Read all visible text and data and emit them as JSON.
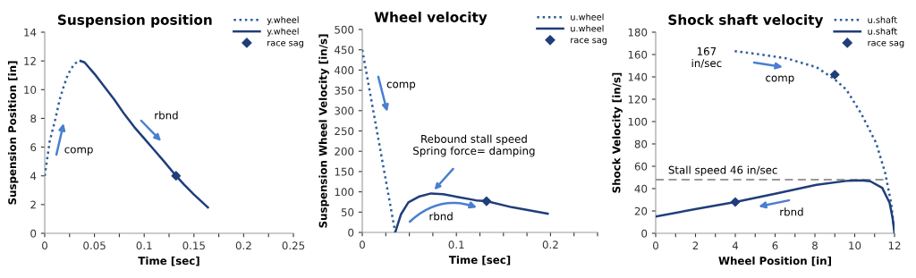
{
  "chart_data": [
    {
      "type": "line",
      "title": "Suspension position",
      "xlabel": "Time [sec]",
      "ylabel": "Suspension Position [in]",
      "xlim": [
        0,
        0.25
      ],
      "ylim": [
        0,
        14
      ],
      "xticks": [
        0,
        {
          "value": 0.025,
          "label": null
        },
        0.05,
        {
          "value": 0.075,
          "label": null
        },
        0.1,
        {
          "value": 0.125,
          "label": null
        },
        0.15,
        {
          "value": 0.175,
          "label": null
        },
        0.2,
        {
          "value": 0.225,
          "label": null
        },
        0.25
      ],
      "yticks": [
        0,
        2,
        4,
        6,
        8,
        10,
        12,
        14
      ],
      "grid": false,
      "legend": "top right",
      "series": [
        {
          "name": "y.wheel",
          "color": "#2e5c9a",
          "line_style": "dotted",
          "x": [
            0,
            0.005,
            0.0105,
            0.015,
            0.019,
            0.023,
            0.027,
            0.031,
            0.036
          ],
          "values": [
            4.0,
            6.4,
            7.9,
            9.3,
            10.2,
            11.0,
            11.5,
            11.85,
            12.0
          ]
        },
        {
          "name": "y.wheel",
          "color": "#1f3e7a",
          "line_style": "solid",
          "x": [
            0.036,
            0.04,
            0.05,
            0.06,
            0.07,
            0.08,
            0.09,
            0.1,
            0.11,
            0.12,
            0.132,
            0.14,
            0.15,
            0.164
          ],
          "values": [
            12.0,
            11.9,
            11.1,
            10.2,
            9.3,
            8.3,
            7.4,
            6.6,
            5.8,
            5.0,
            4.0,
            3.4,
            2.7,
            1.8
          ]
        },
        {
          "name": "race sag",
          "type": "scatter",
          "marker": "diamond",
          "color": "#1f3e7a",
          "x": [
            0.132
          ],
          "values": [
            4.0
          ]
        }
      ],
      "annotations": [
        "comp",
        "rbnd"
      ]
    },
    {
      "type": "line",
      "title": "Wheel velocity",
      "xlabel": "Time [sec]",
      "ylabel": "Suspension Wheel Velocity [in/s]",
      "xlim": [
        0,
        0.25
      ],
      "ylim": [
        0,
        500
      ],
      "xticks": [
        0,
        {
          "value": 0.025,
          "label": null
        },
        {
          "value": 0.05,
          "label": null
        },
        {
          "value": 0.075,
          "label": null
        },
        0.1,
        {
          "value": 0.125,
          "label": null
        },
        {
          "value": 0.15,
          "label": null
        },
        {
          "value": 0.175,
          "label": null
        },
        0.2,
        {
          "value": 0.225,
          "label": null
        },
        {
          "value": 0.25,
          "label": null
        }
      ],
      "yticks": [
        0,
        50,
        100,
        150,
        200,
        250,
        300,
        350,
        400,
        450,
        500
      ],
      "grid": false,
      "legend": "top right",
      "series": [
        {
          "name": "u.wheel",
          "color": "#2e5c9a",
          "line_style": "dotted",
          "x": [
            0,
            0.035
          ],
          "values": [
            450,
            0
          ]
        },
        {
          "name": "u.wheel",
          "color": "#1f3e7a",
          "line_style": "solid",
          "x": [
            0.035,
            0.041,
            0.049,
            0.06,
            0.073,
            0.086,
            0.102,
            0.121,
            0.132,
            0.159,
            0.197
          ],
          "values": [
            0,
            44,
            74,
            88,
            96,
            94,
            87,
            79,
            77,
            62,
            46
          ]
        },
        {
          "name": "race sag",
          "type": "scatter",
          "marker": "diamond",
          "color": "#1f3e7a",
          "x": [
            0.132
          ],
          "values": [
            77
          ]
        }
      ],
      "annotations": [
        "comp",
        {
          "text": "Rebound stall speed\nSpring force= damping",
          "x": 0.073,
          "y": 96
        },
        "rbnd"
      ]
    },
    {
      "type": "line",
      "title": "Shock shaft velocity",
      "xlabel": "Wheel Position [in]",
      "ylabel": "Shock Velocity [in/s]",
      "xlim": [
        0,
        12
      ],
      "ylim": [
        0,
        180
      ],
      "xticks": [
        0,
        {
          "value": 1,
          "label": null
        },
        2,
        {
          "value": 3,
          "label": null
        },
        4,
        {
          "value": 5,
          "label": null
        },
        6,
        {
          "value": 7,
          "label": null
        },
        8,
        {
          "value": 9,
          "label": null
        },
        10,
        {
          "value": 11,
          "label": null
        },
        12
      ],
      "yticks": [
        0,
        20,
        40,
        60,
        80,
        100,
        120,
        140,
        160,
        180
      ],
      "grid": false,
      "legend": "top right",
      "series": [
        {
          "name": "u.shaft",
          "color": "#2e5c9a",
          "line_style": "dotted",
          "x": [
            3.97,
            5.09,
            6.59,
            8.08,
            8.98,
            9.58,
            10.33,
            11.08,
            11.53,
            11.83,
            12
          ],
          "values": [
            163,
            160.5,
            156.5,
            148.6,
            138,
            128.6,
            107,
            80.7,
            54,
            27,
            0
          ]
        },
        {
          "name": "u.shaft",
          "color": "#1f3e7a",
          "line_style": "solid",
          "x": [
            0,
            2.1,
            4.0,
            6.0,
            8.08,
            9.58,
            10.33,
            10.78,
            11.38,
            11.75,
            11.9,
            12
          ],
          "values": [
            15,
            22,
            28,
            35.4,
            43.4,
            46.9,
            47.4,
            46.6,
            40.7,
            27.4,
            14,
            0
          ]
        },
        {
          "name": "race sag",
          "type": "scatter",
          "marker": "diamond",
          "color": "#1f3e7a",
          "x": [
            9,
            4
          ],
          "values": [
            142,
            28
          ]
        }
      ],
      "ref_lines": [
        {
          "axis": "y",
          "value": 48,
          "label": "Stall speed 46 in/sec",
          "color": "#999999",
          "line_style": "dashed"
        }
      ],
      "annotations": [
        "167\nin/sec",
        "comp",
        "rbnd"
      ]
    }
  ]
}
